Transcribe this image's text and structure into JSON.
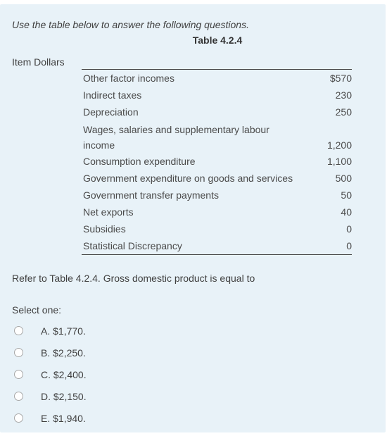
{
  "instructions": "Use the table below to answer the following questions.",
  "table": {
    "title": "Table 4.2.4",
    "column_header": "Item Dollars",
    "rows": [
      {
        "label": "Other factor incomes",
        "value": "$570"
      },
      {
        "label": "Indirect taxes",
        "value": "230"
      },
      {
        "label": "Depreciation",
        "value": "250"
      },
      {
        "label": "Wages, salaries and supplementary labour income",
        "value": "1,200"
      },
      {
        "label": "Consumption expenditure",
        "value": "1,100"
      },
      {
        "label": "Government expenditure on goods and services",
        "value": "500"
      },
      {
        "label": "Government transfer payments",
        "value": "50"
      },
      {
        "label": "Net exports",
        "value": "40"
      },
      {
        "label": "Subsidies",
        "value": "0"
      },
      {
        "label": "Statistical Discrepancy",
        "value": "0"
      }
    ]
  },
  "question": "Refer to Table 4.2.4. Gross domestic product is equal to",
  "select_label": "Select one:",
  "options": [
    {
      "label": "A. $1,770."
    },
    {
      "label": "B. $2,250."
    },
    {
      "label": "C. $2,400."
    },
    {
      "label": "D. $2,150."
    },
    {
      "label": "E. $1,940."
    }
  ]
}
